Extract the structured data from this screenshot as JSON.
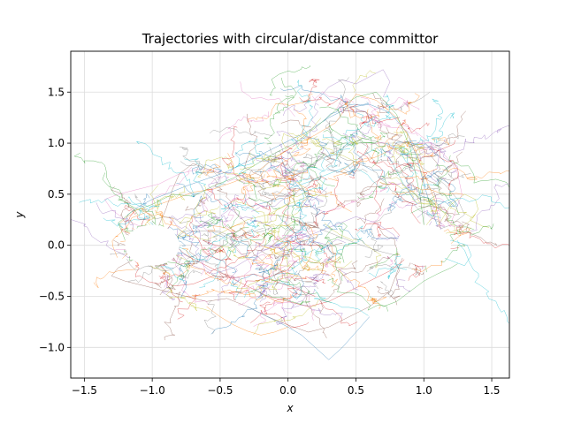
{
  "chart_data": {
    "type": "line",
    "title": "Trajectories with circular/distance committor",
    "xlabel": "x",
    "ylabel": "y",
    "xlim": [
      -1.6,
      1.63
    ],
    "ylim": [
      -1.3,
      1.9
    ],
    "x_ticks": [
      -1.5,
      -1.0,
      -0.5,
      0.0,
      0.5,
      1.0,
      1.5
    ],
    "x_tick_labels": [
      "−1.5",
      "−1.0",
      "−0.5",
      "0.0",
      "0.5",
      "1.0",
      "1.5"
    ],
    "y_ticks": [
      -1.0,
      -0.5,
      0.0,
      0.5,
      1.0,
      1.5
    ],
    "y_tick_labels": [
      "−1.0",
      "−0.5",
      "0.0",
      "0.5",
      "1.0",
      "1.5"
    ],
    "grid": true,
    "legend": "none",
    "states": [
      {
        "center": [
          -1.0,
          0.0
        ],
        "radius": 0.2
      },
      {
        "center": [
          1.0,
          0.0
        ],
        "radius": 0.2
      }
    ],
    "series_colors": [
      "#1f77b4",
      "#ff7f0e",
      "#2ca02c",
      "#d62728",
      "#9467bd",
      "#8c564b",
      "#e377c2",
      "#7f7f7f",
      "#bcbd22",
      "#17becf"
    ],
    "series": [
      {
        "x": [
          -1.2,
          -1.18,
          -1.1,
          -1.0,
          -0.9,
          -0.75,
          -0.6,
          -0.45,
          -0.3,
          -0.15,
          0.0,
          0.15,
          0.3,
          0.45,
          0.6,
          0.75,
          0.88,
          0.95,
          1.0,
          1.05,
          1.1
        ],
        "y": [
          0.2,
          0.3,
          0.38,
          0.45,
          0.5,
          0.58,
          0.65,
          0.72,
          0.82,
          0.92,
          1.02,
          1.12,
          1.25,
          1.35,
          1.38,
          1.3,
          1.1,
          0.85,
          0.6,
          0.38,
          0.19
        ]
      },
      {
        "x": [
          -1.19,
          -1.15,
          -1.05,
          -0.95,
          -0.82,
          -0.7,
          -0.55,
          -0.4,
          -0.25,
          -0.1,
          0.05,
          0.2,
          0.35,
          0.5,
          0.65,
          0.8,
          0.92,
          1.0,
          1.08,
          1.12
        ],
        "y": [
          0.17,
          0.27,
          0.32,
          0.4,
          0.46,
          0.52,
          0.55,
          0.62,
          0.7,
          0.85,
          0.98,
          1.08,
          1.2,
          1.48,
          1.42,
          1.25,
          1.0,
          0.7,
          0.45,
          0.17
        ]
      },
      {
        "x": [
          -1.2,
          -1.22,
          -1.25,
          -1.15,
          -1.0,
          -0.85,
          -0.7,
          -0.55,
          -0.4,
          -0.25,
          -0.1,
          0.05,
          0.2,
          0.35,
          0.5,
          0.65,
          0.8,
          0.9,
          0.97,
          1.0
        ],
        "y": [
          0.05,
          0.12,
          0.22,
          0.33,
          0.4,
          0.5,
          0.48,
          0.58,
          0.66,
          0.78,
          0.9,
          1.0,
          1.15,
          1.32,
          1.45,
          1.5,
          1.28,
          0.95,
          0.5,
          0.2
        ]
      },
      {
        "x": [
          -0.85,
          -0.75,
          -0.6,
          -0.45,
          -0.3,
          -0.15,
          0.0,
          0.15,
          0.3,
          0.45,
          0.6,
          0.75,
          0.85,
          0.9,
          0.88,
          0.85
        ],
        "y": [
          0.02,
          -0.1,
          -0.2,
          -0.3,
          -0.4,
          -0.5,
          -0.55,
          -0.6,
          -0.55,
          -0.45,
          -0.35,
          -0.25,
          -0.15,
          -0.05,
          0.05,
          0.1
        ]
      },
      {
        "x": [
          -0.82,
          -0.7,
          -0.55,
          -0.4,
          -0.25,
          -0.1,
          0.05,
          0.2,
          0.35,
          0.5,
          0.65,
          0.78,
          0.82
        ],
        "y": [
          -0.05,
          -0.2,
          -0.28,
          -0.22,
          -0.1,
          0.0,
          0.05,
          0.12,
          0.2,
          0.28,
          0.22,
          0.1,
          0.0
        ]
      },
      {
        "x": [
          -1.15,
          -1.25,
          -1.3,
          -1.2,
          -1.05,
          -0.9,
          -0.75,
          -0.6,
          -0.45,
          -0.3,
          -0.15,
          0.0,
          0.15,
          0.3,
          0.45,
          0.6,
          0.75,
          0.85
        ],
        "y": [
          -0.15,
          -0.22,
          -0.3,
          -0.35,
          -0.4,
          -0.45,
          -0.5,
          -0.55,
          -0.52,
          -0.6,
          -0.7,
          -0.78,
          -0.85,
          -0.8,
          -0.7,
          -0.6,
          -0.45,
          -0.1
        ]
      },
      {
        "x": [
          -1.08,
          -1.2,
          -1.3,
          -1.35,
          -1.25,
          -1.1,
          -0.95,
          -0.8,
          -0.65,
          -0.5,
          -0.35,
          -0.2
        ],
        "y": [
          0.18,
          0.25,
          0.35,
          0.45,
          0.5,
          0.55,
          0.6,
          0.7,
          0.75,
          0.72,
          0.68,
          0.6
        ]
      },
      {
        "x": [
          -0.2,
          -0.05,
          0.1,
          0.25,
          0.4,
          0.55,
          0.7,
          0.85,
          1.0,
          1.15,
          1.25,
          1.3,
          1.2,
          1.1
        ],
        "y": [
          0.6,
          0.65,
          0.72,
          0.85,
          0.95,
          1.05,
          1.0,
          0.9,
          0.75,
          0.6,
          0.45,
          0.3,
          0.2,
          0.15
        ]
      },
      {
        "x": [
          1.12,
          1.25,
          1.35,
          1.4,
          1.38,
          1.3,
          1.2,
          1.1
        ],
        "y": [
          0.1,
          0.15,
          0.25,
          0.35,
          0.45,
          0.5,
          0.4,
          0.18
        ]
      },
      {
        "x": [
          1.1,
          1.2,
          1.3,
          1.35,
          1.32,
          1.2,
          1.05
        ],
        "y": [
          -0.1,
          -0.15,
          -0.2,
          -0.1,
          0.0,
          0.05,
          -0.18
        ]
      },
      {
        "x": [
          -0.3,
          -0.15,
          0.0,
          0.1,
          0.2,
          0.3,
          0.4,
          0.5,
          0.6
        ],
        "y": [
          -0.6,
          -0.7,
          -0.8,
          -0.88,
          -1.0,
          -1.12,
          -1.0,
          -0.85,
          -0.7
        ]
      },
      {
        "x": [
          -0.6,
          -0.5,
          -0.4,
          -0.3,
          -0.2,
          -0.1,
          0.0
        ],
        "y": [
          -0.6,
          -0.7,
          -0.78,
          -0.84,
          -0.88,
          -0.85,
          -0.8
        ]
      },
      {
        "x": [
          0.6,
          0.7,
          0.8,
          0.9,
          1.0,
          1.1,
          1.2,
          1.25
        ],
        "y": [
          -0.5,
          -0.6,
          -0.55,
          -0.45,
          -0.35,
          -0.28,
          -0.22,
          -0.18
        ]
      },
      {
        "x": [
          -0.95,
          -0.85,
          -0.7,
          -0.55,
          -0.4,
          -0.25,
          -0.1,
          0.05,
          0.2
        ],
        "y": [
          -0.3,
          -0.4,
          -0.38,
          -0.3,
          -0.32,
          -0.28,
          -0.35,
          -0.42,
          -0.5
        ]
      },
      {
        "x": [
          0.2,
          0.3,
          0.4,
          0.5,
          0.6,
          0.7,
          0.75,
          0.7
        ],
        "y": [
          1.4,
          1.55,
          1.62,
          1.58,
          1.65,
          1.72,
          1.6,
          1.45
        ]
      },
      {
        "x": [
          -0.95,
          -0.9,
          -0.85,
          -0.8,
          -0.7,
          -0.6,
          -0.5
        ],
        "y": [
          0.2,
          0.35,
          0.55,
          0.7,
          0.8,
          0.75,
          0.7
        ]
      },
      {
        "x": [
          0.8,
          0.9,
          1.0,
          1.1,
          1.2,
          1.25,
          1.28,
          1.2
        ],
        "y": [
          1.2,
          1.15,
          1.05,
          0.95,
          0.82,
          0.7,
          0.5,
          0.22
        ]
      },
      {
        "x": [
          -0.1,
          0.05,
          0.2,
          0.35,
          0.5,
          0.65,
          0.8,
          0.9,
          0.92
        ],
        "y": [
          0.3,
          0.25,
          0.18,
          0.1,
          0.02,
          -0.05,
          -0.1,
          -0.05,
          0.05
        ]
      },
      {
        "x": [
          -0.9,
          -0.75,
          -0.6,
          -0.45,
          -0.3,
          -0.15,
          0.0,
          0.15
        ],
        "y": [
          0.05,
          0.1,
          0.05,
          0.15,
          0.25,
          0.3,
          0.4,
          0.48
        ]
      },
      {
        "x": [
          0.0,
          0.15,
          0.3,
          0.45,
          0.55,
          0.65,
          0.75,
          0.85,
          0.95
        ],
        "y": [
          0.55,
          0.62,
          0.7,
          0.78,
          0.88,
          0.95,
          0.85,
          0.6,
          0.4
        ]
      }
    ]
  }
}
